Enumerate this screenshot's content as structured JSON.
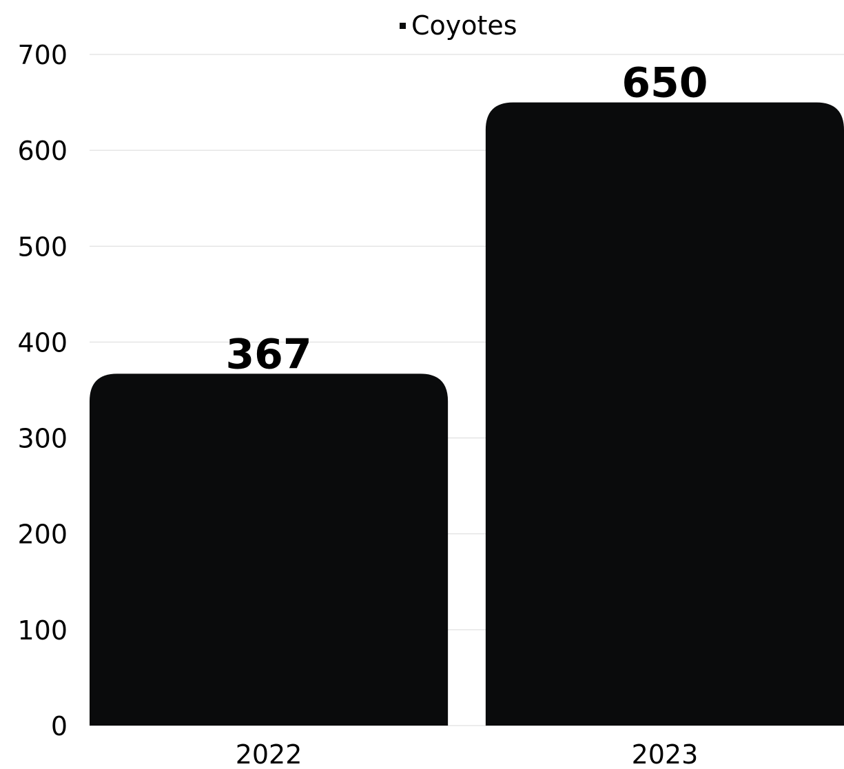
{
  "chart_data": {
    "type": "bar",
    "categories": [
      "2022",
      "2023"
    ],
    "series": [
      {
        "name": "Coyotes",
        "values": [
          367,
          650
        ],
        "color": "#0a0b0c"
      }
    ],
    "title": "",
    "xlabel": "",
    "ylabel": "",
    "ylim": [
      0,
      700
    ],
    "yticks": [
      0,
      100,
      200,
      300,
      400,
      500,
      600,
      700
    ],
    "grid": true,
    "legend_position": "top",
    "data_labels": true
  }
}
